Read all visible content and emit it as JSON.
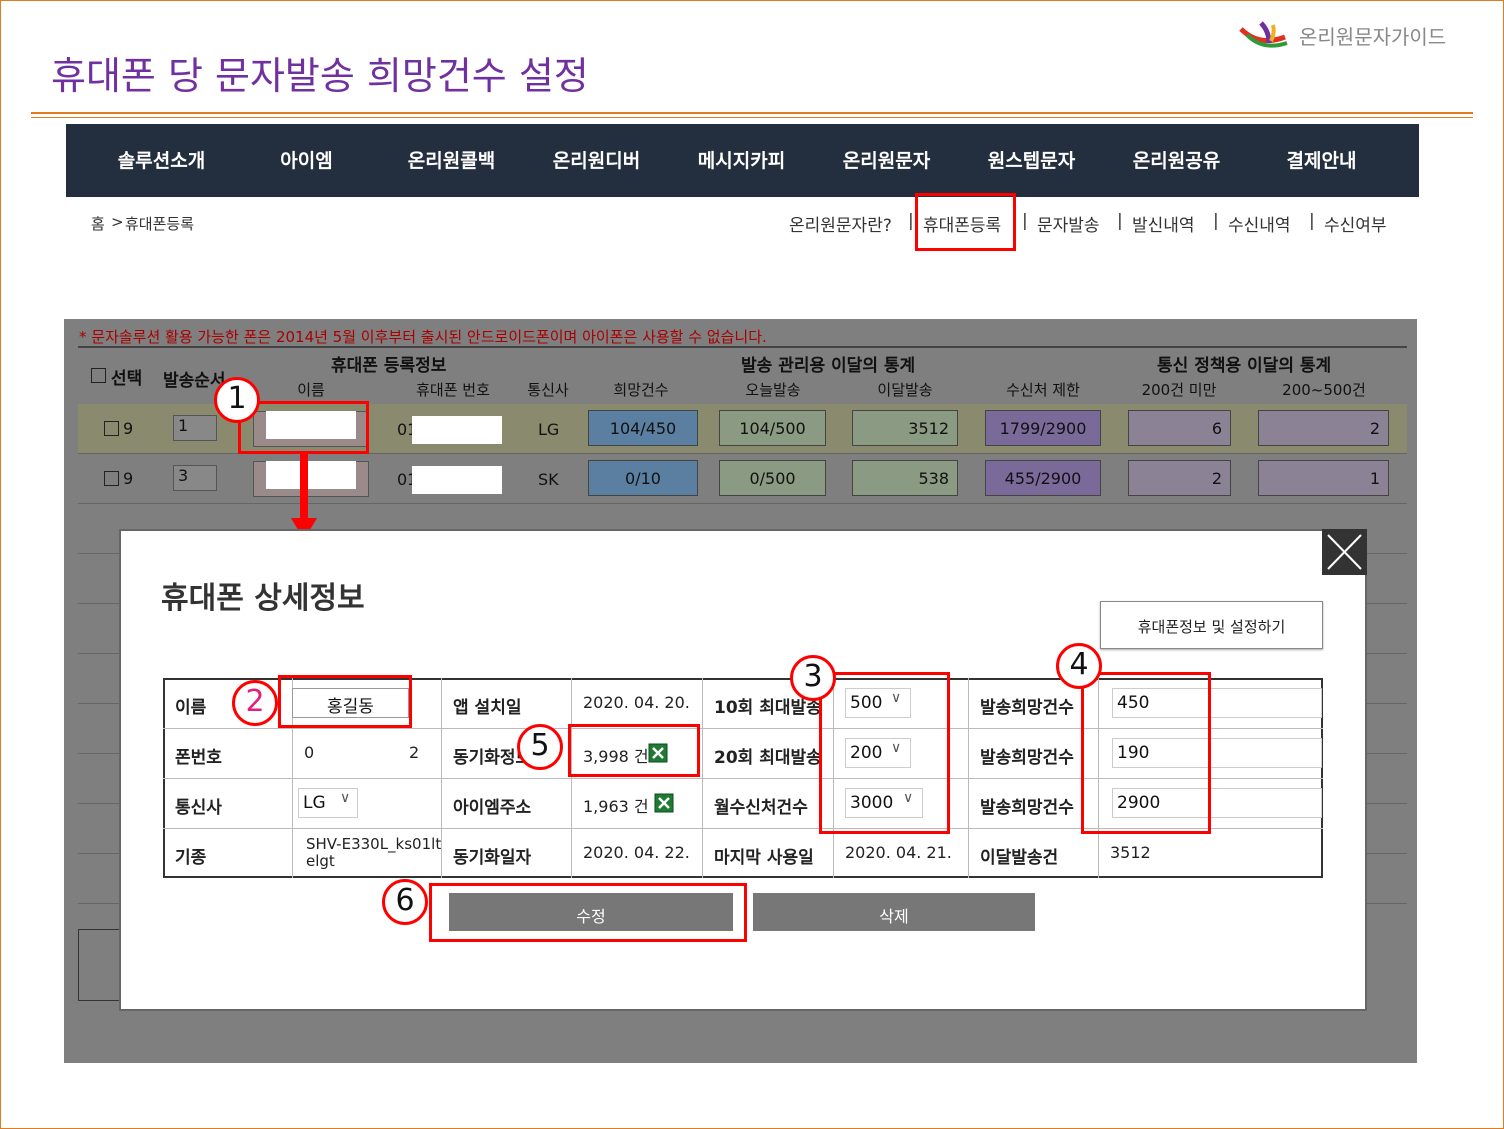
{
  "slide": {
    "title": "휴대폰 당 문자발송 희망건수 설정",
    "brand": "온리원문자가이드"
  },
  "nav": [
    "솔루션소개",
    "아이엠",
    "온리원콜백",
    "온리원디버",
    "메시지카피",
    "온리원문자",
    "원스텝문자",
    "온리원공유",
    "결제안내"
  ],
  "breadcrumb": {
    "home": "홈",
    "current": "휴대폰등록"
  },
  "subnav": [
    "온리원문자란?",
    "휴대폰등록",
    "문자발송",
    "발신내역",
    "수신내역",
    "수신여부"
  ],
  "notice": "* 문자솔루션 활용 가능한 폰은 2014년 5월 이후부터 출시된 안드로이드폰이며 아이폰은 사용할 수 없습니다.",
  "table": {
    "select": "선택",
    "order": "발송순서",
    "groups": [
      "휴대폰 등록정보",
      "발송 관리용 이달의 통계",
      "통신 정책용 이달의 통계"
    ],
    "columns": [
      "이름",
      "휴대폰 번호",
      "통신사",
      "희망건수",
      "오늘발송",
      "이달발송",
      "수신처 제한",
      "200건 미만",
      "200~500건"
    ],
    "rows": [
      [
        "9",
        "1",
        "01",
        "LG",
        "104/450",
        "104/500",
        "3512",
        "1799/2900",
        "6",
        "2"
      ],
      [
        "9",
        "3",
        "01",
        "SK",
        "0/10",
        "0/500",
        "538",
        "455/2900",
        "2",
        "1"
      ]
    ]
  },
  "modal": {
    "title": "휴대폰 상세정보",
    "settings_button": "휴대폰정보 및 설정하기",
    "rows": [
      [
        "이름",
        "홍길동",
        "앱 설치일",
        "2020. 04. 20.",
        "10회 최대발송",
        "500",
        "발송희망건수",
        "450"
      ],
      [
        "폰번호",
        "0",
        "동기화정보",
        "3,998 건",
        "20회 최대발송",
        "200",
        "발송희망건수",
        "190"
      ],
      [
        "통신사",
        "LG",
        "아이엠주소",
        "1,963 건",
        "월수신처건수",
        "3000",
        "발송희망건수",
        "2900"
      ],
      [
        "기종",
        "SHV-E330L_ks01ltelgt",
        "동기화일자",
        "2020. 04. 22.",
        "마지막 사용일",
        "2020. 04. 21.",
        "이달발송건",
        "3512"
      ]
    ],
    "save": "수정",
    "delete": "삭제"
  },
  "annotations": [
    "1",
    "2",
    "3",
    "4",
    "5",
    "6"
  ]
}
